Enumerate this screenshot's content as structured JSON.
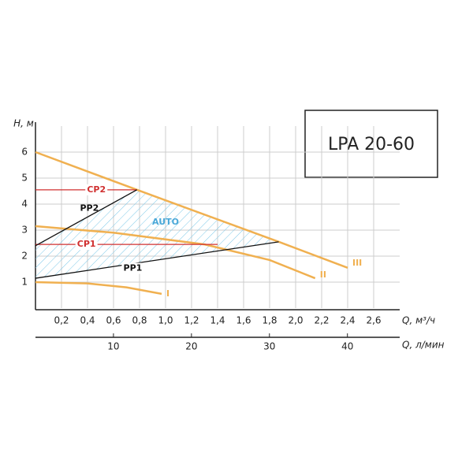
{
  "chart_data": {
    "type": "line",
    "title": "LPA 20-60",
    "x_label": "Q, м³/ч",
    "x2_label": "Q, л/мин",
    "y_label": "H, м",
    "zone_label": "AUTO",
    "xlim": [
      0,
      2.8
    ],
    "x2lim": [
      0,
      46.7
    ],
    "ylim": [
      0,
      7
    ],
    "xticks": [
      {
        "value": 0.2,
        "label": "0,2"
      },
      {
        "value": 0.4,
        "label": "0,4"
      },
      {
        "value": 0.6,
        "label": "0,6"
      },
      {
        "value": 0.8,
        "label": "0,8"
      },
      {
        "value": 1.0,
        "label": "1,0"
      },
      {
        "value": 1.2,
        "label": "1,2"
      },
      {
        "value": 1.4,
        "label": "1,4"
      },
      {
        "value": 1.6,
        "label": "1,6"
      },
      {
        "value": 1.8,
        "label": "1,8"
      },
      {
        "value": 2.0,
        "label": "2,0"
      },
      {
        "value": 2.2,
        "label": "2,2"
      },
      {
        "value": 2.4,
        "label": "2,4"
      },
      {
        "value": 2.6,
        "label": "2,6"
      }
    ],
    "x2ticks": [
      10,
      20,
      30,
      40
    ],
    "yticks": [
      1,
      2,
      3,
      4,
      5,
      6
    ],
    "grid": true,
    "series": [
      {
        "name": "I",
        "color": "#f0b050",
        "x": [
          0,
          0.4,
          0.7,
          0.97
        ],
        "values": [
          1.0,
          0.95,
          0.8,
          0.55
        ]
      },
      {
        "name": "II",
        "color": "#f0b050",
        "x": [
          0,
          0.6,
          1.3,
          1.8,
          2.15
        ],
        "values": [
          3.15,
          2.9,
          2.45,
          1.85,
          1.15
        ]
      },
      {
        "name": "III",
        "color": "#f0b050",
        "x": [
          0,
          0.78,
          1.87,
          2.4
        ],
        "values": [
          6.0,
          4.55,
          2.55,
          1.55
        ]
      },
      {
        "name": "CP1",
        "color": "#d03030",
        "x": [
          0,
          1.4
        ],
        "values": [
          2.45,
          2.45
        ]
      },
      {
        "name": "CP2",
        "color": "#d03030",
        "x": [
          0,
          0.78
        ],
        "values": [
          4.55,
          4.55
        ]
      },
      {
        "name": "PP1",
        "color": "#111111",
        "x": [
          0,
          1.87
        ],
        "values": [
          1.15,
          2.55
        ]
      },
      {
        "name": "PP2",
        "color": "#111111",
        "x": [
          0,
          0.78
        ],
        "values": [
          2.4,
          4.55
        ]
      }
    ]
  }
}
